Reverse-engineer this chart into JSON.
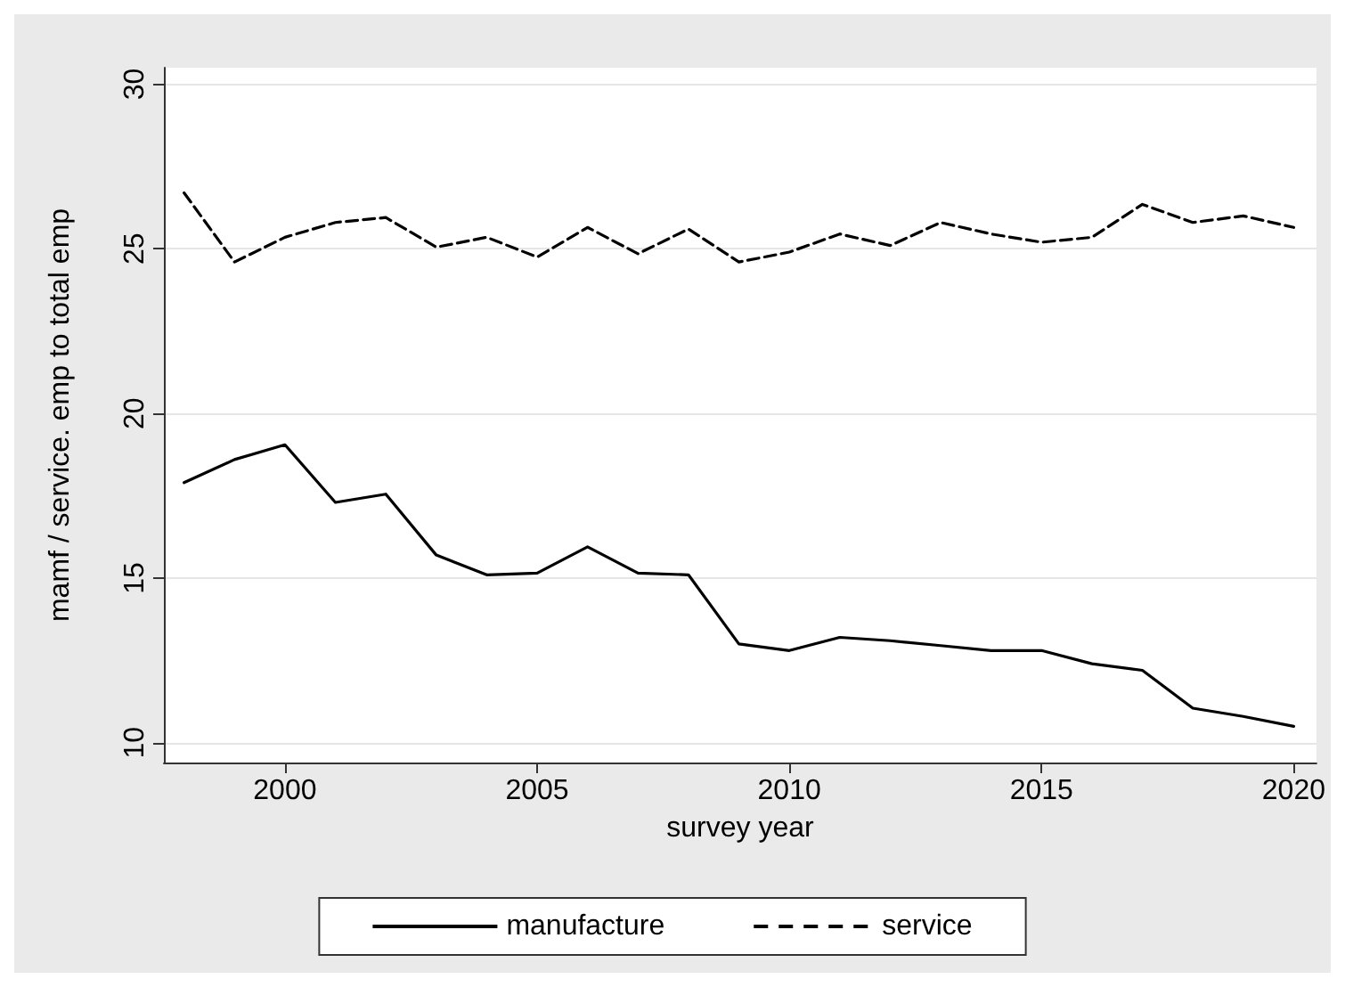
{
  "chart_data": {
    "type": "line",
    "xlabel": "survey year",
    "ylabel": "mamf / service. emp to total emp",
    "x": [
      1998,
      1999,
      2000,
      2001,
      2002,
      2003,
      2004,
      2005,
      2006,
      2007,
      2008,
      2009,
      2010,
      2011,
      2012,
      2013,
      2014,
      2015,
      2016,
      2017,
      2018,
      2019,
      2020
    ],
    "series": [
      {
        "name": "manufacture",
        "color": "#000000",
        "line_style": "solid",
        "values": [
          17.9,
          18.6,
          19.05,
          17.3,
          17.55,
          15.7,
          15.1,
          15.15,
          15.95,
          15.15,
          15.1,
          13.0,
          12.8,
          13.2,
          13.1,
          12.95,
          12.8,
          12.8,
          12.4,
          12.2,
          11.05,
          10.8,
          10.5
        ]
      },
      {
        "name": "service",
        "color": "#000000",
        "line_style": "dashed",
        "values": [
          26.7,
          24.6,
          25.35,
          25.8,
          25.95,
          25.05,
          25.35,
          24.75,
          25.65,
          24.85,
          25.6,
          24.6,
          24.9,
          25.45,
          25.1,
          25.8,
          25.45,
          25.2,
          25.35,
          26.35,
          25.8,
          26.0,
          25.65
        ]
      }
    ],
    "xlim": [
      1997.6,
      2020.45
    ],
    "xticks": [
      2000,
      2005,
      2010,
      2015,
      2020
    ],
    "ylim": [
      9.4,
      30.5
    ],
    "yticks": [
      10,
      15,
      20,
      25,
      30
    ],
    "grid": "y",
    "legend": "bottom",
    "marker": "none"
  }
}
